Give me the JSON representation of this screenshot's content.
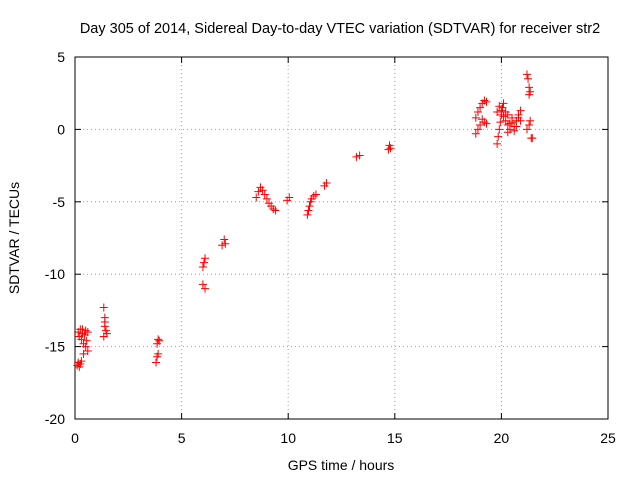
{
  "chart_data": {
    "type": "scatter",
    "title": "Day 305 of 2014, Sidereal Day-to-day VTEC variation (SDTVAR) for receiver str2",
    "xlabel": "GPS time / hours",
    "ylabel": "SDTVAR / TECUs",
    "xlim": [
      0,
      25
    ],
    "ylim": [
      -20,
      5
    ],
    "xticks": [
      0,
      5,
      10,
      15,
      20,
      25
    ],
    "xtick_labels": [
      "0",
      "5",
      "10",
      "15",
      "20",
      "25"
    ],
    "yticks": [
      -20,
      -15,
      -10,
      -5,
      0,
      5
    ],
    "ytick_labels": [
      "-20",
      "-15",
      "-10",
      "-5",
      "0",
      "5"
    ],
    "grid": true,
    "marker": "+",
    "series": [
      {
        "name": "SDTVAR",
        "color": "#ff0000",
        "points": [
          [
            0.1,
            -16.3
          ],
          [
            0.15,
            -16.1
          ],
          [
            0.2,
            -16.4
          ],
          [
            0.25,
            -16.2
          ],
          [
            0.3,
            -16.0
          ],
          [
            0.15,
            -14.0
          ],
          [
            0.2,
            -14.3
          ],
          [
            0.25,
            -13.8
          ],
          [
            0.3,
            -14.5
          ],
          [
            0.35,
            -14.1
          ],
          [
            0.4,
            -14.8
          ],
          [
            0.45,
            -14.2
          ],
          [
            0.5,
            -15.0
          ],
          [
            0.55,
            -14.6
          ],
          [
            0.6,
            -15.3
          ],
          [
            0.4,
            -15.5
          ],
          [
            0.5,
            -13.9
          ],
          [
            0.6,
            -14.0
          ],
          [
            0.35,
            -13.8
          ],
          [
            1.35,
            -12.3
          ],
          [
            1.4,
            -13.0
          ],
          [
            1.4,
            -13.6
          ],
          [
            1.45,
            -13.9
          ],
          [
            1.5,
            -14.1
          ],
          [
            1.35,
            -14.3
          ],
          [
            1.4,
            -13.3
          ],
          [
            3.8,
            -16.1
          ],
          [
            3.85,
            -15.7
          ],
          [
            3.9,
            -15.5
          ],
          [
            3.85,
            -14.8
          ],
          [
            3.9,
            -14.5
          ],
          [
            3.95,
            -14.6
          ],
          [
            6.0,
            -9.5
          ],
          [
            6.05,
            -9.2
          ],
          [
            6.1,
            -8.9
          ],
          [
            6.0,
            -10.7
          ],
          [
            6.1,
            -11.0
          ],
          [
            6.9,
            -8.0
          ],
          [
            7.0,
            -7.6
          ],
          [
            7.05,
            -7.9
          ],
          [
            8.5,
            -4.7
          ],
          [
            8.6,
            -4.3
          ],
          [
            8.7,
            -4.0
          ],
          [
            8.8,
            -4.2
          ],
          [
            8.9,
            -4.5
          ],
          [
            9.0,
            -4.8
          ],
          [
            9.1,
            -5.1
          ],
          [
            9.2,
            -5.3
          ],
          [
            9.3,
            -5.5
          ],
          [
            9.4,
            -5.6
          ],
          [
            9.95,
            -4.9
          ],
          [
            10.05,
            -4.7
          ],
          [
            10.9,
            -5.9
          ],
          [
            10.95,
            -5.6
          ],
          [
            11.0,
            -5.3
          ],
          [
            11.05,
            -5.0
          ],
          [
            11.1,
            -4.8
          ],
          [
            11.2,
            -4.6
          ],
          [
            11.3,
            -4.5
          ],
          [
            11.7,
            -3.9
          ],
          [
            11.8,
            -3.7
          ],
          [
            13.2,
            -1.9
          ],
          [
            13.35,
            -1.8
          ],
          [
            14.7,
            -1.4
          ],
          [
            14.75,
            -1.1
          ],
          [
            14.8,
            -1.3
          ],
          [
            18.8,
            -0.3
          ],
          [
            18.9,
            0.0
          ],
          [
            19.0,
            0.3
          ],
          [
            19.1,
            0.7
          ],
          [
            19.2,
            0.5
          ],
          [
            19.3,
            0.4
          ],
          [
            18.8,
            0.8
          ],
          [
            18.9,
            1.2
          ],
          [
            19.0,
            1.5
          ],
          [
            19.1,
            1.8
          ],
          [
            19.2,
            2.0
          ],
          [
            19.3,
            1.9
          ],
          [
            19.8,
            -1.0
          ],
          [
            19.85,
            -0.5
          ],
          [
            19.9,
            0.0
          ],
          [
            19.95,
            0.5
          ],
          [
            20.0,
            1.0
          ],
          [
            20.05,
            1.5
          ],
          [
            20.1,
            1.8
          ],
          [
            19.8,
            1.2
          ],
          [
            19.9,
            1.6
          ],
          [
            20.0,
            1.3
          ],
          [
            20.1,
            0.9
          ],
          [
            20.2,
            0.6
          ],
          [
            20.3,
            0.3
          ],
          [
            20.4,
            0.0
          ],
          [
            20.3,
            -0.2
          ],
          [
            20.4,
            0.4
          ],
          [
            20.5,
            0.8
          ],
          [
            20.6,
            0.2
          ],
          [
            20.7,
            0.6
          ],
          [
            20.8,
            1.0
          ],
          [
            20.9,
            1.3
          ],
          [
            20.2,
            1.2
          ],
          [
            20.3,
            1.0
          ],
          [
            20.5,
            0.5
          ],
          [
            20.6,
            -0.1
          ],
          [
            20.7,
            0.2
          ],
          [
            20.8,
            0.8
          ],
          [
            20.9,
            0.6
          ],
          [
            21.2,
            3.8
          ],
          [
            21.25,
            3.5
          ],
          [
            21.3,
            2.9
          ],
          [
            21.35,
            2.6
          ],
          [
            21.3,
            2.4
          ],
          [
            21.2,
            0.0
          ],
          [
            21.3,
            0.3
          ],
          [
            21.35,
            0.6
          ],
          [
            21.4,
            -0.6
          ],
          [
            21.45,
            -0.6
          ]
        ]
      }
    ]
  }
}
